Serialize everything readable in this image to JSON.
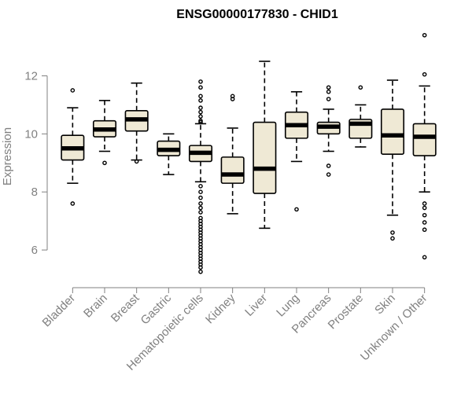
{
  "chart_data": {
    "type": "boxplot",
    "title": "ENSG00000177830 - CHID1",
    "xlabel": "",
    "ylabel": "Expression",
    "ylim": [
      5.0,
      13.8
    ],
    "yticks": [
      6,
      8,
      10,
      12
    ],
    "grid": false,
    "categories": [
      "Bladder",
      "Brain",
      "Breast",
      "Gastric",
      "Hematopoietic cells",
      "Kidney",
      "Liver",
      "Lung",
      "Pancreas",
      "Prostate",
      "Skin",
      "Unknown / Other"
    ],
    "box_fill": "#efe9d5",
    "series": [
      {
        "name": "Bladder",
        "whisker_low": 8.3,
        "q1": 9.1,
        "median": 9.5,
        "q3": 9.95,
        "whisker_high": 10.9,
        "outliers": [
          11.5,
          7.6
        ]
      },
      {
        "name": "Brain",
        "whisker_low": 9.4,
        "q1": 9.9,
        "median": 10.15,
        "q3": 10.45,
        "whisker_high": 11.15,
        "outliers": [
          9.0
        ]
      },
      {
        "name": "Breast",
        "whisker_low": 9.1,
        "q1": 10.1,
        "median": 10.5,
        "q3": 10.8,
        "whisker_high": 11.75,
        "outliers": [
          9.05
        ]
      },
      {
        "name": "Gastric",
        "whisker_low": 8.6,
        "q1": 9.25,
        "median": 9.45,
        "q3": 9.75,
        "whisker_high": 10.0,
        "outliers": []
      },
      {
        "name": "Hematopoietic cells",
        "whisker_low": 8.35,
        "q1": 9.05,
        "median": 9.35,
        "q3": 9.6,
        "whisker_high": 10.35,
        "outliers": [
          11.8,
          11.6,
          11.3,
          11.15,
          10.9,
          10.75,
          10.6,
          10.45,
          10.4,
          8.2,
          8.0,
          7.8,
          7.6,
          7.45,
          7.3,
          7.1,
          7.0,
          6.9,
          6.8,
          6.7,
          6.6,
          6.5,
          6.4,
          6.3,
          6.2,
          6.1,
          6.0,
          5.9,
          5.8,
          5.7,
          5.6,
          5.5,
          5.4,
          5.25
        ]
      },
      {
        "name": "Kidney",
        "whisker_low": 7.25,
        "q1": 8.3,
        "median": 8.6,
        "q3": 9.2,
        "whisker_high": 10.2,
        "outliers": [
          11.3,
          11.2
        ]
      },
      {
        "name": "Liver",
        "whisker_low": 6.75,
        "q1": 7.95,
        "median": 8.8,
        "q3": 10.4,
        "whisker_high": 12.5,
        "outliers": []
      },
      {
        "name": "Lung",
        "whisker_low": 9.05,
        "q1": 9.85,
        "median": 10.3,
        "q3": 10.75,
        "whisker_high": 11.45,
        "outliers": [
          7.4
        ]
      },
      {
        "name": "Pancreas",
        "whisker_low": 9.4,
        "q1": 10.0,
        "median": 10.25,
        "q3": 10.4,
        "whisker_high": 10.85,
        "outliers": [
          11.6,
          11.45,
          11.2,
          8.9,
          8.6
        ]
      },
      {
        "name": "Prostate",
        "whisker_low": 9.55,
        "q1": 9.85,
        "median": 10.35,
        "q3": 10.5,
        "whisker_high": 11.0,
        "outliers": [
          11.6
        ]
      },
      {
        "name": "Skin",
        "whisker_low": 7.2,
        "q1": 9.3,
        "median": 9.95,
        "q3": 10.85,
        "whisker_high": 11.85,
        "outliers": [
          6.6,
          6.4
        ]
      },
      {
        "name": "Unknown / Other",
        "whisker_low": 8.0,
        "q1": 9.25,
        "median": 9.9,
        "q3": 10.35,
        "whisker_high": 11.65,
        "outliers": [
          13.4,
          12.05,
          7.6,
          7.45,
          7.2,
          6.95,
          6.7,
          5.75
        ]
      }
    ]
  }
}
